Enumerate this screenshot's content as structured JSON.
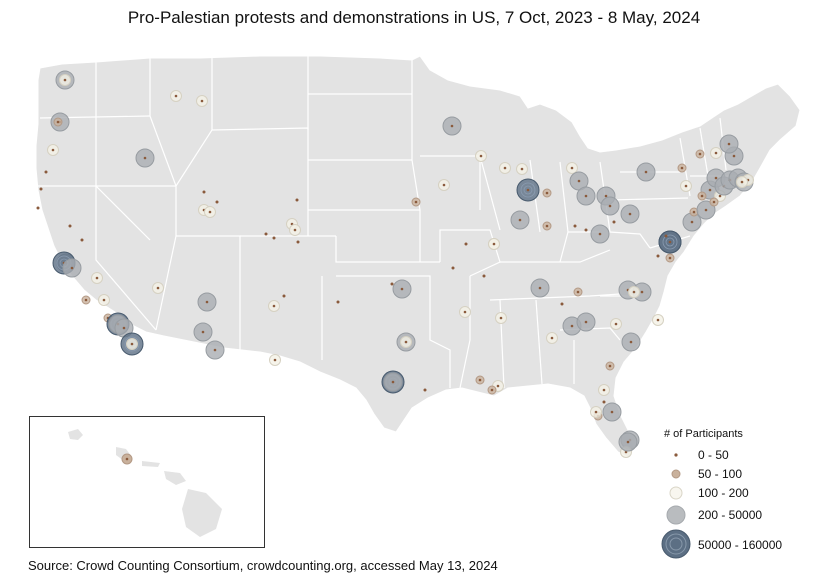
{
  "title": "Pro-Palestian protests and demonstrations in US, 7 Oct, 2023 - 8 May, 2024",
  "source": "Source: Crowd Counting Consortium, crowdcounting.org, accessed May 13, 2024",
  "colors": {
    "land": "#e3e3e3",
    "state_border": "#ffffff",
    "dot_small": "#8a5a3c",
    "ring_tan": "#c9b19c",
    "ring_cream": "#f4f1e6",
    "ring_grey": "#a9adb1",
    "ring_slate": "#5c6f84"
  },
  "legend": {
    "title": "# of Participants",
    "items": [
      {
        "label": "0 - 50",
        "category": "0-50"
      },
      {
        "label": "50 - 100",
        "category": "50-100"
      },
      {
        "label": "100 - 200",
        "category": "100-200"
      },
      {
        "label": "200 - 50000",
        "category": "200-50000"
      },
      {
        "label": "50000 - 160000",
        "category": "50000-160000"
      }
    ]
  }
}
